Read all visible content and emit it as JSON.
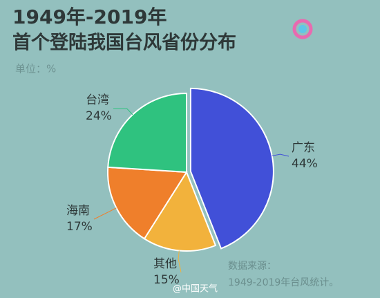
{
  "chart_data": {
    "type": "pie",
    "title": "1949年-2019年",
    "subtitle": "首个登陆我国台风省份分布",
    "unit_label": "单位：%",
    "categories": [
      "广东",
      "其他",
      "海南",
      "台湾"
    ],
    "values": [
      44,
      15,
      17,
      24
    ],
    "value_labels": [
      "44%",
      "15%",
      "17%",
      "24%"
    ],
    "colors": [
      "#4150d8",
      "#f2b23c",
      "#ef7f2b",
      "#2fc27f"
    ],
    "source_title": "数据来源：",
    "source_text": "1949-2019年台风统计。",
    "watermark": "@中国天气"
  }
}
